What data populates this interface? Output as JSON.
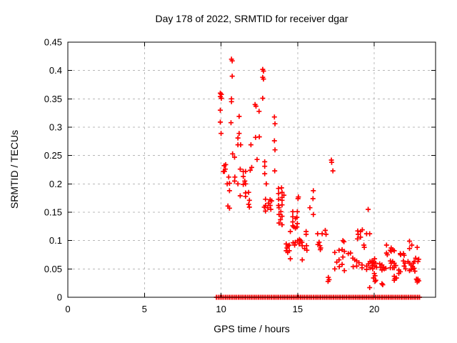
{
  "chart_data": {
    "type": "scatter",
    "title": "Day 178 of 2022, SRMTID for receiver dgar",
    "xlabel": "GPS time / hours",
    "ylabel": "SRMTID / TECUs",
    "xlim": [
      0,
      24
    ],
    "ylim": [
      0,
      0.45
    ],
    "grid": true,
    "legend": "none",
    "x_ticks": {
      "values": [
        0,
        5,
        10,
        15,
        20
      ],
      "labels": [
        "0",
        "5",
        "10",
        "15",
        "20"
      ]
    },
    "y_ticks": {
      "values": [
        0,
        0.05,
        0.1,
        0.15,
        0.2,
        0.25,
        0.3,
        0.35,
        0.4,
        0.45
      ],
      "labels": [
        "0",
        "0.05",
        "0.1",
        "0.15",
        "0.2",
        "0.25",
        "0.3",
        "0.35",
        "0.4",
        "0.45"
      ]
    },
    "colors": {
      "marker": "#ff0000",
      "grid": "#b8b8b8",
      "border": "#000000",
      "background": "#ffffff"
    },
    "marker": {
      "shape": "plus",
      "size": 7
    },
    "series": [
      {
        "name": "SRMTID",
        "points": [
          [
            9.95,
            0.36
          ],
          [
            10.02,
            0.358
          ],
          [
            9.95,
            0.354
          ],
          [
            10.02,
            0.351
          ],
          [
            9.95,
            0.33
          ],
          [
            9.95,
            0.309
          ],
          [
            10.0,
            0.289
          ],
          [
            10.2,
            0.232
          ],
          [
            10.3,
            0.234
          ],
          [
            10.28,
            0.226
          ],
          [
            10.22,
            0.222
          ],
          [
            10.15,
            0.222
          ],
          [
            10.5,
            0.212
          ],
          [
            10.4,
            0.2
          ],
          [
            10.55,
            0.201
          ],
          [
            10.55,
            0.188
          ],
          [
            10.45,
            0.161
          ],
          [
            10.55,
            0.157
          ],
          [
            10.68,
            0.42
          ],
          [
            10.73,
            0.417
          ],
          [
            10.73,
            0.39
          ],
          [
            10.68,
            0.35
          ],
          [
            10.68,
            0.345
          ],
          [
            10.65,
            0.308
          ],
          [
            10.75,
            0.253
          ],
          [
            10.88,
            0.247
          ],
          [
            10.9,
            0.212
          ],
          [
            10.88,
            0.205
          ],
          [
            11.18,
            0.319
          ],
          [
            11.18,
            0.289
          ],
          [
            11.1,
            0.281
          ],
          [
            11.1,
            0.269
          ],
          [
            11.28,
            0.269
          ],
          [
            11.25,
            0.226
          ],
          [
            11.45,
            0.222
          ],
          [
            11.6,
            0.222
          ],
          [
            11.45,
            0.213
          ],
          [
            11.55,
            0.205
          ],
          [
            11.1,
            0.2
          ],
          [
            11.45,
            0.199
          ],
          [
            11.6,
            0.2
          ],
          [
            11.25,
            0.179
          ],
          [
            11.6,
            0.184
          ],
          [
            11.6,
            0.178
          ],
          [
            11.8,
            0.185
          ],
          [
            11.85,
            0.171
          ],
          [
            11.8,
            0.164
          ],
          [
            11.85,
            0.159
          ],
          [
            11.95,
            0.269
          ],
          [
            12.0,
            0.229
          ],
          [
            11.9,
            0.224
          ],
          [
            12.25,
            0.282
          ],
          [
            12.5,
            0.283
          ],
          [
            12.22,
            0.34
          ],
          [
            12.28,
            0.337
          ],
          [
            12.48,
            0.328
          ],
          [
            12.72,
            0.351
          ],
          [
            12.35,
            0.243
          ],
          [
            12.85,
            0.239
          ],
          [
            12.85,
            0.231
          ],
          [
            12.85,
            0.218
          ],
          [
            12.95,
            0.2
          ],
          [
            12.72,
            0.402
          ],
          [
            12.77,
            0.399
          ],
          [
            12.72,
            0.388
          ],
          [
            12.77,
            0.385
          ],
          [
            12.9,
            0.173
          ],
          [
            13.2,
            0.172
          ],
          [
            13.3,
            0.17
          ],
          [
            13.1,
            0.166
          ],
          [
            13.2,
            0.162
          ],
          [
            12.9,
            0.162
          ],
          [
            12.82,
            0.159
          ],
          [
            12.9,
            0.152
          ],
          [
            13.25,
            0.155
          ],
          [
            13.05,
            0.158
          ],
          [
            13.48,
            0.318
          ],
          [
            13.52,
            0.306
          ],
          [
            13.48,
            0.276
          ],
          [
            13.52,
            0.26
          ],
          [
            13.5,
            0.223
          ],
          [
            13.75,
            0.192
          ],
          [
            13.95,
            0.193
          ],
          [
            13.75,
            0.183
          ],
          [
            13.98,
            0.185
          ],
          [
            14.1,
            0.18
          ],
          [
            13.98,
            0.176
          ],
          [
            13.75,
            0.173
          ],
          [
            13.98,
            0.171
          ],
          [
            13.75,
            0.162
          ],
          [
            13.98,
            0.163
          ],
          [
            13.78,
            0.158
          ],
          [
            13.9,
            0.151
          ],
          [
            13.78,
            0.146
          ],
          [
            13.98,
            0.143
          ],
          [
            13.88,
            0.137
          ],
          [
            13.98,
            0.128
          ],
          [
            13.78,
            0.131
          ],
          [
            15.05,
            0.177
          ],
          [
            15.02,
            0.174
          ],
          [
            14.68,
            0.151
          ],
          [
            14.98,
            0.151
          ],
          [
            14.68,
            0.142
          ],
          [
            14.85,
            0.139
          ],
          [
            14.68,
            0.133
          ],
          [
            14.98,
            0.13
          ],
          [
            14.68,
            0.126
          ],
          [
            14.85,
            0.122
          ],
          [
            14.52,
            0.116
          ],
          [
            14.75,
            0.124
          ],
          [
            14.95,
            0.124
          ],
          [
            14.95,
            0.141
          ],
          [
            14.25,
            0.094
          ],
          [
            14.35,
            0.09
          ],
          [
            14.45,
            0.092
          ],
          [
            14.3,
            0.087
          ],
          [
            14.25,
            0.082
          ],
          [
            14.45,
            0.082
          ],
          [
            14.35,
            0.079
          ],
          [
            14.85,
            0.097
          ],
          [
            15.0,
            0.1
          ],
          [
            14.7,
            0.096
          ],
          [
            14.8,
            0.092
          ],
          [
            14.52,
            0.068
          ],
          [
            16.02,
            0.188
          ],
          [
            16.0,
            0.174
          ],
          [
            15.8,
            0.158
          ],
          [
            16.02,
            0.146
          ],
          [
            15.55,
            0.116
          ],
          [
            15.55,
            0.111
          ],
          [
            16.3,
            0.112
          ],
          [
            16.6,
            0.112
          ],
          [
            16.8,
            0.118
          ],
          [
            16.85,
            0.111
          ],
          [
            15.12,
            0.102
          ],
          [
            15.18,
            0.1
          ],
          [
            15.28,
            0.097
          ],
          [
            15.1,
            0.094
          ],
          [
            15.3,
            0.091
          ],
          [
            15.58,
            0.091
          ],
          [
            15.45,
            0.086
          ],
          [
            15.6,
            0.083
          ],
          [
            16.45,
            0.091
          ],
          [
            16.5,
            0.087
          ],
          [
            16.48,
            0.084
          ],
          [
            16.32,
            0.093
          ],
          [
            16.4,
            0.097
          ],
          [
            15.3,
            0.066
          ],
          [
            17.0,
            0.035
          ],
          [
            17.05,
            0.031
          ],
          [
            16.98,
            0.028
          ],
          [
            17.2,
            0.242
          ],
          [
            17.22,
            0.238
          ],
          [
            17.3,
            0.223
          ],
          [
            17.42,
            0.079
          ],
          [
            17.7,
            0.083
          ],
          [
            17.9,
            0.084
          ],
          [
            18.05,
            0.081
          ],
          [
            18.3,
            0.077
          ],
          [
            18.45,
            0.078
          ],
          [
            17.95,
            0.071
          ],
          [
            17.7,
            0.066
          ],
          [
            17.55,
            0.062
          ],
          [
            17.9,
            0.058
          ],
          [
            17.72,
            0.054
          ],
          [
            17.42,
            0.05
          ],
          [
            18.05,
            0.047
          ],
          [
            17.95,
            0.1
          ],
          [
            18.02,
            0.098
          ],
          [
            18.6,
            0.069
          ],
          [
            18.72,
            0.066
          ],
          [
            18.85,
            0.064
          ],
          [
            19.0,
            0.061
          ],
          [
            19.2,
            0.057
          ],
          [
            18.85,
            0.055
          ],
          [
            18.62,
            0.054
          ],
          [
            19.2,
            0.052
          ],
          [
            19.5,
            0.055
          ],
          [
            19.62,
            0.059
          ],
          [
            19.72,
            0.063
          ],
          [
            19.85,
            0.064
          ],
          [
            19.9,
            0.061
          ],
          [
            19.85,
            0.056
          ],
          [
            19.72,
            0.052
          ],
          [
            19.5,
            0.049
          ],
          [
            19.1,
            0.116
          ],
          [
            19.22,
            0.119
          ],
          [
            19.5,
            0.112
          ],
          [
            19.7,
            0.112
          ],
          [
            19.1,
            0.106
          ],
          [
            18.9,
            0.103
          ],
          [
            19.32,
            0.092
          ],
          [
            19.6,
            0.155
          ],
          [
            18.92,
            0.117
          ],
          [
            18.95,
            0.111
          ],
          [
            19.35,
            0.088
          ],
          [
            19.95,
            0.062
          ],
          [
            20.02,
            0.068
          ],
          [
            20.1,
            0.06
          ],
          [
            20.0,
            0.055
          ],
          [
            19.9,
            0.05
          ],
          [
            20.15,
            0.053
          ],
          [
            20.0,
            0.042
          ],
          [
            20.05,
            0.038
          ],
          [
            19.95,
            0.034
          ],
          [
            20.1,
            0.03
          ],
          [
            20.05,
            0.028
          ],
          [
            20.5,
            0.024
          ],
          [
            20.55,
            0.022
          ],
          [
            19.7,
            0.017
          ],
          [
            20.35,
            0.059
          ],
          [
            20.5,
            0.057
          ],
          [
            20.4,
            0.053
          ],
          [
            20.6,
            0.053
          ],
          [
            20.65,
            0.05
          ],
          [
            20.5,
            0.048
          ],
          [
            20.75,
            0.051
          ],
          [
            20.8,
            0.078
          ],
          [
            20.85,
            0.075
          ],
          [
            20.8,
            0.092
          ],
          [
            21.05,
            0.083
          ],
          [
            21.1,
            0.087
          ],
          [
            21.2,
            0.084
          ],
          [
            21.3,
            0.082
          ],
          [
            21.1,
            0.081
          ],
          [
            21.05,
            0.064
          ],
          [
            21.2,
            0.063
          ],
          [
            21.1,
            0.06
          ],
          [
            21.3,
            0.06
          ],
          [
            21.4,
            0.056
          ],
          [
            21.3,
            0.052
          ],
          [
            21.2,
            0.052
          ],
          [
            21.05,
            0.052
          ],
          [
            21.3,
            0.037
          ],
          [
            21.35,
            0.033
          ],
          [
            21.45,
            0.034
          ],
          [
            21.3,
            0.03
          ],
          [
            21.6,
            0.048
          ],
          [
            21.7,
            0.045
          ],
          [
            21.6,
            0.042
          ],
          [
            21.7,
            0.077
          ],
          [
            21.72,
            0.075
          ],
          [
            21.9,
            0.077
          ],
          [
            21.95,
            0.074
          ],
          [
            22.3,
            0.099
          ],
          [
            22.3,
            0.086
          ],
          [
            22.45,
            0.092
          ],
          [
            22.8,
            0.088
          ],
          [
            21.9,
            0.064
          ],
          [
            22.0,
            0.06
          ],
          [
            21.95,
            0.055
          ],
          [
            22.05,
            0.05
          ],
          [
            22.2,
            0.063
          ],
          [
            22.3,
            0.06
          ],
          [
            22.4,
            0.057
          ],
          [
            22.55,
            0.06
          ],
          [
            22.6,
            0.063
          ],
          [
            22.7,
            0.069
          ],
          [
            22.9,
            0.067
          ],
          [
            22.5,
            0.054
          ],
          [
            22.4,
            0.049
          ],
          [
            22.3,
            0.047
          ],
          [
            22.6,
            0.051
          ],
          [
            22.65,
            0.046
          ],
          [
            22.85,
            0.063
          ],
          [
            22.75,
            0.032
          ],
          [
            22.8,
            0.03
          ],
          [
            22.85,
            0.032
          ],
          [
            22.8,
            0.027
          ],
          [
            22.9,
            0.029
          ]
        ]
      }
    ],
    "zero_band": {
      "value": 0,
      "start": 9.7,
      "end": 22.95,
      "count": 112
    }
  }
}
